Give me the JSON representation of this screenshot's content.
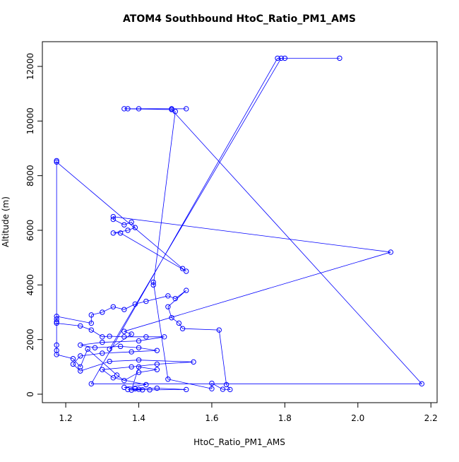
{
  "chart_data": {
    "type": "line",
    "title": "ATOM4 Southbound HtoC_Ratio_PM1_AMS",
    "x_label": "HtoC_Ratio_PM1_AMS",
    "y_label": "Altitude (m)",
    "x": [
      1.37,
      1.4,
      1.43,
      1.53,
      1.45,
      1.39,
      1.36,
      1.42,
      1.33,
      1.3,
      1.38,
      1.45,
      1.55,
      1.4,
      1.32,
      1.24,
      1.22,
      1.24,
      1.3,
      1.38,
      1.45,
      1.4,
      1.35,
      1.28,
      1.24,
      1.3,
      1.4,
      1.47,
      1.42,
      1.36,
      1.32,
      1.3,
      1.27,
      1.24,
      1.175,
      1.175,
      1.175,
      1.27,
      1.27,
      1.3,
      1.33,
      1.36,
      1.39,
      1.42,
      1.48,
      1.5,
      1.53,
      1.48,
      1.49,
      1.51,
      1.52,
      1.62,
      1.64,
      1.65,
      1.63,
      1.6,
      1.6,
      1.48,
      1.44,
      1.44,
      1.5,
      1.49,
      1.53,
      1.4,
      1.37,
      1.36,
      1.49,
      2.175,
      1.27,
      1.78,
      1.8,
      1.95,
      1.79,
      1.32,
      1.38,
      1.36,
      2.09,
      1.33,
      1.33,
      1.36,
      1.38,
      1.39,
      1.37,
      1.33,
      1.35,
      1.53,
      1.52,
      1.175,
      1.175,
      1.175,
      1.175,
      1.175,
      1.175,
      1.22,
      1.24,
      1.26,
      1.34,
      1.36,
      1.4,
      1.45,
      1.4,
      1.38,
      1.41
    ],
    "series": [
      {
        "name": "Altitude",
        "color": "#0000ff",
        "values": [
          170,
          180,
          160,
          170,
          220,
          200,
          250,
          350,
          600,
          900,
          1000,
          1100,
          1180,
          1250,
          1200,
          850,
          1100,
          1400,
          1500,
          1550,
          1600,
          1700,
          1750,
          1700,
          1800,
          1900,
          1950,
          2100,
          2100,
          2100,
          2120,
          2100,
          2350,
          2500,
          2600,
          2750,
          2850,
          2600,
          2900,
          3000,
          3200,
          3100,
          3300,
          3400,
          3600,
          3500,
          3800,
          3200,
          2800,
          2600,
          2400,
          2350,
          350,
          170,
          180,
          400,
          200,
          550,
          4100,
          4000,
          10350,
          10450,
          10450,
          10450,
          10450,
          10450,
          10420,
          380,
          380,
          12300,
          12300,
          12300,
          12300,
          1650,
          2200,
          2300,
          5200,
          6500,
          6400,
          6200,
          6300,
          6100,
          6000,
          5900,
          5900,
          4500,
          4600,
          8500,
          8550,
          2650,
          1800,
          1600,
          1450,
          1300,
          1000,
          1650,
          700,
          500,
          800,
          900,
          1000,
          150,
          160
        ]
      }
    ],
    "xlim": [
      1.136,
      2.217
    ],
    "ylim": [
      -310,
      12905
    ],
    "xticks": [
      1.2,
      1.4,
      1.6,
      1.8,
      {
        "value": 2,
        "label": "2.0"
      },
      2.2
    ],
    "yticks": [
      0,
      2000,
      4000,
      6000,
      8000,
      10000,
      12000
    ]
  }
}
